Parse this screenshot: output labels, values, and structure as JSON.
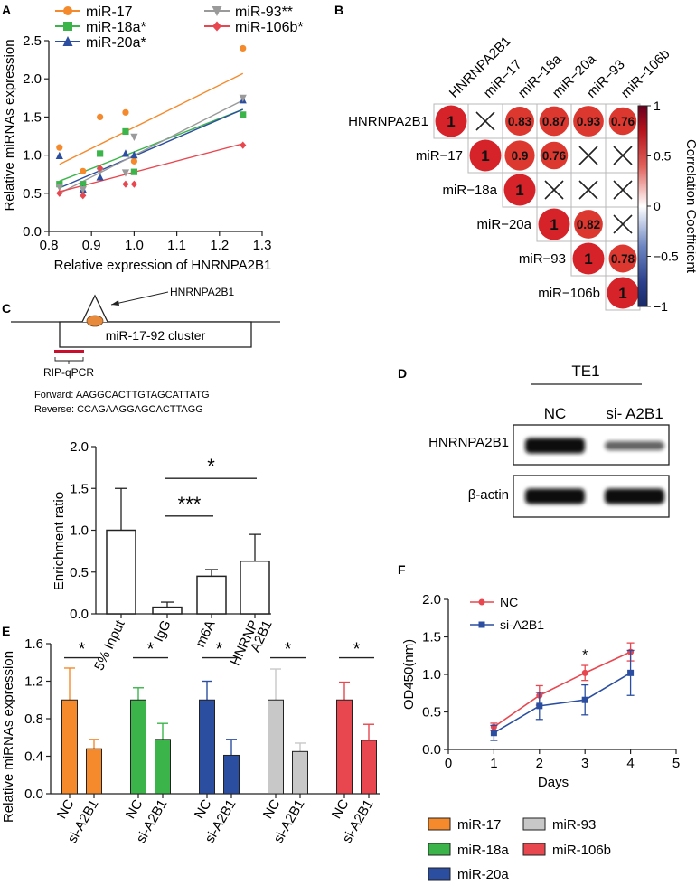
{
  "panels": {
    "A": "A",
    "B": "B",
    "C": "C",
    "D": "D",
    "E": "E",
    "F": "F"
  },
  "colors": {
    "orange": "#f58a2c",
    "green": "#3bb54a",
    "blue": "#2b4ea0",
    "gray": "#9a9a9a",
    "red": "#e8474f",
    "darkred": "#b5121b"
  },
  "chart_data": [
    {
      "id": "A",
      "type": "scatter",
      "xlabel": "Relative expression of HNRNPA2B1",
      "ylabel": "Relative miRNAs expression",
      "xlim": [
        0.8,
        1.3
      ],
      "ylim": [
        0.0,
        2.5
      ],
      "xticks": [
        "0.8",
        "0.9",
        "1.0",
        "1.1",
        "1.2",
        "1.3"
      ],
      "yticks": [
        "0.0",
        "0.5",
        "1.0",
        "1.5",
        "2.0",
        "2.5"
      ],
      "x": [
        0.825,
        0.88,
        0.92,
        0.98,
        1.0,
        1.255
      ],
      "series": [
        {
          "name": "miR-17",
          "legend": "miR-17",
          "color": "#f58a2c",
          "marker": "circle",
          "values": [
            1.1,
            0.79,
            1.5,
            1.56,
            0.92,
            2.4
          ],
          "fit": [
            0.825,
            0.88,
            1.255,
            2.07
          ]
        },
        {
          "name": "miR-18a",
          "legend": "miR-18a*",
          "color": "#3bb54a",
          "marker": "square",
          "values": [
            0.62,
            0.62,
            1.02,
            1.31,
            0.78,
            1.53
          ],
          "fit": [
            0.825,
            0.66,
            1.255,
            1.6
          ]
        },
        {
          "name": "miR-20a",
          "legend": "miR-20a*",
          "color": "#2b4ea0",
          "marker": "triangle",
          "values": [
            0.99,
            0.55,
            0.71,
            1.02,
            1.0,
            1.72
          ],
          "fit": [
            0.825,
            0.57,
            1.255,
            1.6
          ]
        },
        {
          "name": "miR-93",
          "legend": "miR-93**",
          "color": "#9a9a9a",
          "marker": "triangle-down",
          "values": [
            0.58,
            0.55,
            0.79,
            0.77,
            1.24,
            1.75
          ],
          "fit": [
            0.825,
            0.5,
            1.255,
            1.72
          ]
        },
        {
          "name": "miR-106b",
          "legend": "miR-106b*",
          "color": "#e8474f",
          "marker": "diamond",
          "values": [
            0.5,
            0.47,
            0.83,
            0.62,
            0.62,
            1.13
          ],
          "fit": [
            0.825,
            0.52,
            1.255,
            1.15
          ]
        }
      ]
    },
    {
      "id": "B",
      "type": "heatmap",
      "labels": [
        "HNRNPA2B1",
        "miR−17",
        "miR−18a",
        "miR−20a",
        "miR−93",
        "miR−106b"
      ],
      "col_labels": [
        "HNRNPA2B1",
        "miR−17",
        "miR−18a",
        "miR−20a",
        "miR−93",
        "miR−106b"
      ],
      "cells": [
        [
          1,
          null,
          0.83,
          0.87,
          0.93,
          0.76
        ],
        [
          null,
          1,
          0.9,
          0.76,
          null,
          null
        ],
        [
          null,
          null,
          1,
          null,
          null,
          null
        ],
        [
          null,
          null,
          null,
          1,
          0.82,
          null
        ],
        [
          null,
          null,
          null,
          null,
          1,
          0.78
        ],
        [
          null,
          null,
          null,
          null,
          null,
          1
        ]
      ],
      "cell_labels": [
        [
          "1",
          "",
          "0.83",
          "0.87",
          "0.93",
          "0.76"
        ],
        [
          "",
          "1",
          "0.9",
          "0.76",
          "",
          ""
        ],
        [
          "",
          "",
          "1",
          "",
          "",
          ""
        ],
        [
          "",
          "",
          "",
          "1",
          "0.82",
          ""
        ],
        [
          "",
          "",
          "",
          "",
          "1",
          "0.78"
        ],
        [
          "",
          "",
          "",
          "",
          "",
          "1"
        ]
      ],
      "colorbar_label": "Correlation Coefficient",
      "colorbar_ticks": [
        "1",
        "0.5",
        "0",
        "−0.5",
        "−1"
      ],
      "colorbar_values": [
        1,
        0.5,
        0,
        -0.5,
        -1
      ]
    },
    {
      "id": "C",
      "type": "bar",
      "ylabel": "Enrichment ratio",
      "ylim": [
        0,
        2.0
      ],
      "yticks": [
        "0.0",
        "0.5",
        "1.0",
        "1.5",
        "2.0"
      ],
      "categories": [
        "5% Input",
        "IgG",
        "m6A",
        "HNRNP\nA2B1"
      ],
      "category_lines": [
        [
          "5% Input"
        ],
        [
          "IgG"
        ],
        [
          "m6A"
        ],
        [
          "HNRNP",
          "A2B1"
        ]
      ],
      "values": [
        1.0,
        0.08,
        0.45,
        0.63
      ],
      "errors": [
        0.5,
        0.06,
        0.08,
        0.32
      ],
      "significance": [
        {
          "from": 1,
          "to": 3,
          "label": "*",
          "y": 1.62
        },
        {
          "from": 1,
          "to": 2,
          "label": "***",
          "y": 1.17
        }
      ]
    },
    {
      "id": "E",
      "type": "bar",
      "ylabel": "Relative miRNAs expression",
      "ylim": [
        0,
        1.6
      ],
      "yticks": [
        "0.0",
        "0.4",
        "0.8",
        "1.2",
        "1.6"
      ],
      "groups": [
        {
          "name": "miR-17",
          "color": "#f58a2c",
          "labels": [
            "NC",
            "si-A2B1"
          ],
          "values": [
            1.0,
            0.48
          ],
          "errors": [
            0.34,
            0.1
          ],
          "sig": "*"
        },
        {
          "name": "miR-18a",
          "color": "#3bb54a",
          "labels": [
            "NC",
            "si-A2B1"
          ],
          "values": [
            1.0,
            0.58
          ],
          "errors": [
            0.13,
            0.17
          ],
          "sig": "*"
        },
        {
          "name": "miR-20a",
          "color": "#2b4ea0",
          "labels": [
            "NC",
            "si-A2B1"
          ],
          "values": [
            1.0,
            0.41
          ],
          "errors": [
            0.2,
            0.17
          ],
          "sig": "*"
        },
        {
          "name": "miR-93",
          "color": "#c8c8c8",
          "labels": [
            "NC",
            "si-A2B1"
          ],
          "values": [
            1.0,
            0.45
          ],
          "errors": [
            0.33,
            0.09
          ],
          "sig": "*"
        },
        {
          "name": "miR-106b",
          "color": "#e8474f",
          "labels": [
            "NC",
            "si-A2B1"
          ],
          "values": [
            1.0,
            0.57
          ],
          "errors": [
            0.19,
            0.17
          ],
          "sig": "*"
        }
      ]
    },
    {
      "id": "F",
      "type": "line",
      "xlabel": "Days",
      "ylabel": "OD450(nm)",
      "xlim": [
        0,
        5
      ],
      "ylim": [
        0,
        2.0
      ],
      "xticks": [
        "0",
        "1",
        "2",
        "3",
        "4",
        "5"
      ],
      "yticks": [
        "0.0",
        "0.5",
        "1.0",
        "1.5",
        "2.0"
      ],
      "x": [
        1,
        2,
        3,
        4
      ],
      "series": [
        {
          "name": "NC",
          "color": "#e8474f",
          "marker": "circle",
          "values": [
            0.3,
            0.72,
            1.02,
            1.3
          ],
          "errors": [
            0.05,
            0.13,
            0.1,
            0.12
          ]
        },
        {
          "name": "si-A2B1",
          "color": "#2b4ea0",
          "marker": "square",
          "values": [
            0.22,
            0.58,
            0.66,
            1.02
          ],
          "errors": [
            0.1,
            0.18,
            0.2,
            0.3
          ]
        }
      ],
      "annotations": [
        {
          "x": 3,
          "y": 1.2,
          "text": "*"
        }
      ]
    }
  ],
  "schematic": {
    "protein": "HNRNPA2B1",
    "cluster": "miR-17-92 cluster",
    "assay": "RIP-qPCR",
    "forward": "Forward: AAGGCACTTGTAGCATTATG",
    "reverse": "Reverse: CCAGAAGGAGCACTTAGG"
  },
  "western": {
    "cell_line": "TE1",
    "lanes": [
      "NC",
      "si- A2B1"
    ],
    "rows": [
      {
        "label": "HNRNPA2B1",
        "intensity": [
          1.0,
          0.45
        ]
      },
      {
        "label": "β-actin",
        "intensity": [
          1.0,
          1.0
        ]
      }
    ]
  }
}
